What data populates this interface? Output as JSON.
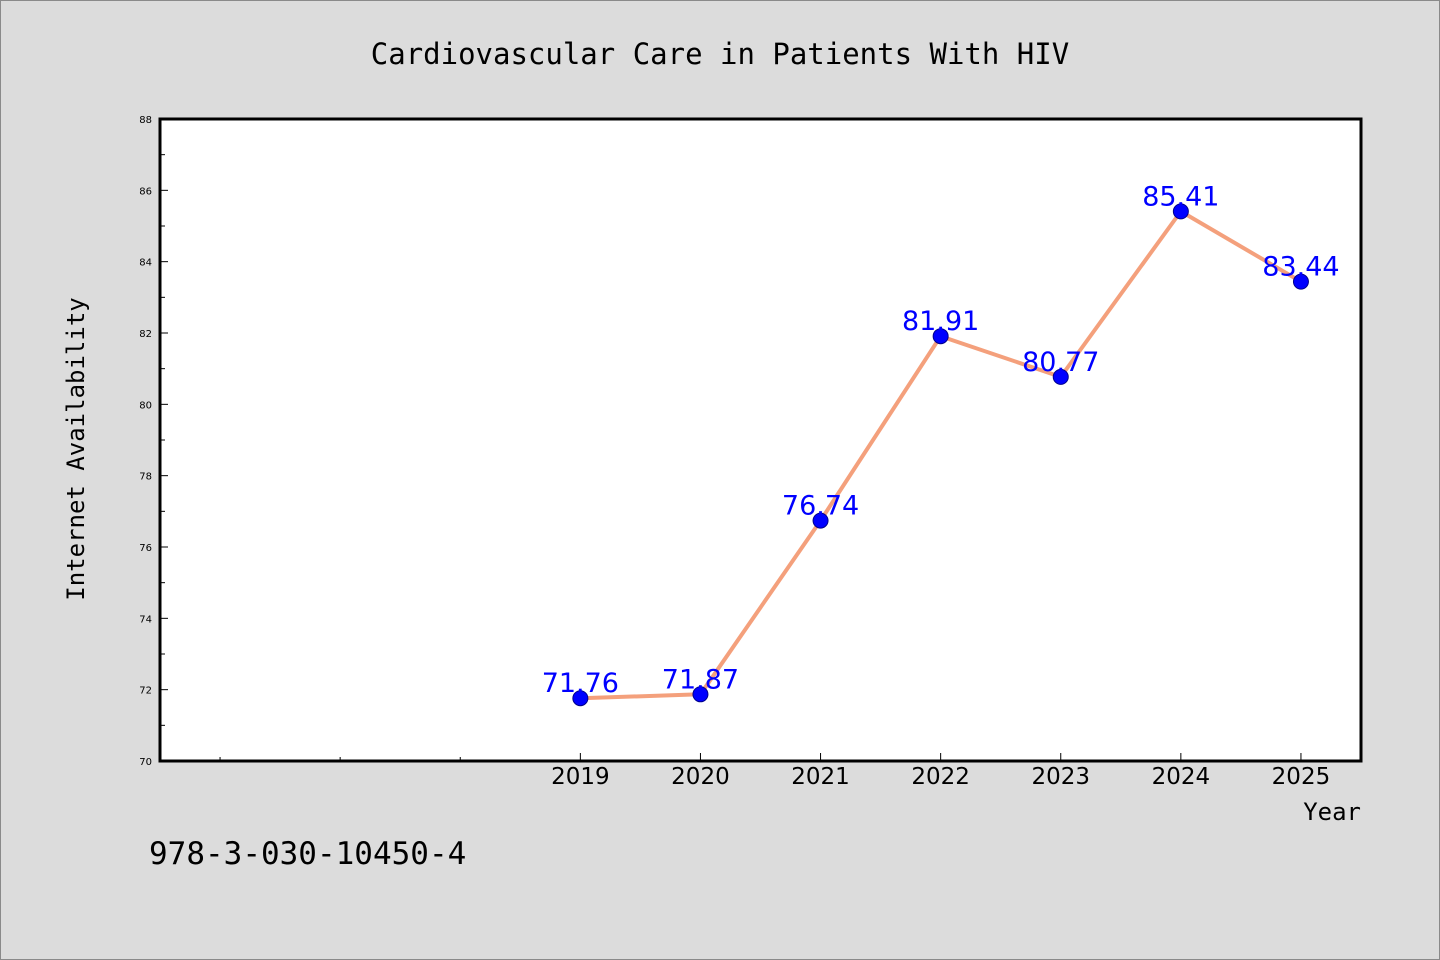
{
  "chart_data": {
    "type": "line",
    "title": "Cardiovascular Care in Patients With HIV",
    "xlabel": "Year",
    "ylabel": "Internet Availability",
    "categories": [
      "2019",
      "2020",
      "2021",
      "2022",
      "2023",
      "2024",
      "2025"
    ],
    "x_axis_extent": [
      2015.5,
      2025.5
    ],
    "ylim": [
      70,
      88
    ],
    "y_ticks": [
      70,
      72,
      74,
      76,
      78,
      80,
      82,
      84,
      86,
      88
    ],
    "y_tick_labels": [
      "70",
      "72",
      "74",
      "76",
      "78",
      "80",
      "82",
      "84",
      "86",
      "88"
    ],
    "series": [
      {
        "values": [
          71.76,
          71.87,
          76.74,
          81.91,
          80.77,
          85.41,
          83.44
        ],
        "labels": [
          "71.76",
          "71.87",
          "76.74",
          "81.91",
          "80.77",
          "85.41",
          "83.44"
        ],
        "line_color": "#f4a07c",
        "marker_color": "#0000ff"
      }
    ],
    "grid": false,
    "legend": "none"
  },
  "annotation": {
    "isbn": "978-3-030-10450-4"
  },
  "colors": {
    "background": "#dcdcdc",
    "plot_background": "#ffffff",
    "line": "#f4a07c",
    "marker": "#0000ff",
    "label": "#0000ff"
  }
}
